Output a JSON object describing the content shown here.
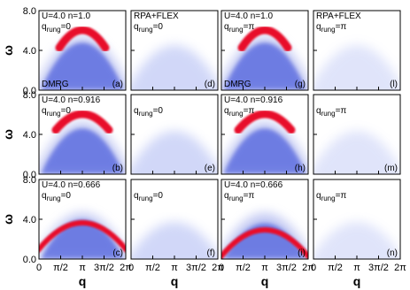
{
  "axes": {
    "ylabel": "ω",
    "xlabel": "q",
    "ylim": [
      0,
      8
    ],
    "yticks": [
      {
        "value": 0,
        "label": "0.0"
      },
      {
        "value": 4,
        "label": "4.0"
      },
      {
        "value": 8,
        "label": "8.0"
      }
    ],
    "xlim": [
      0,
      6.2832
    ],
    "xticks": [
      0,
      {
        "value": 1.5708,
        "label": "π/2"
      },
      {
        "value": 3.1416,
        "label": "π"
      },
      {
        "value": 4.7124,
        "label": "3π/2"
      },
      {
        "value": 6.2832,
        "label": "2π"
      }
    ]
  },
  "panels": [
    {
      "header": "U=4.0 n=1.0",
      "qrung": {
        "base": "q",
        "sub": "rung",
        "rest": "=0"
      },
      "method": "DMRG",
      "tag": "(a)"
    },
    {
      "header": "RPA+FLEX",
      "qrung": {
        "base": "q",
        "sub": "rung",
        "rest": "=0"
      },
      "tag": "(d)"
    },
    {
      "header": "U=4.0 n=1.0",
      "qrung": {
        "base": "q",
        "sub": "rung",
        "rest": "=π"
      },
      "method": "DMRG",
      "tag": "(g)"
    },
    {
      "header": "RPA+FLEX",
      "qrung": {
        "base": "q",
        "sub": "rung",
        "rest": "=π"
      },
      "tag": "(l)"
    },
    {
      "header": "U=4.0 n=0.916",
      "qrung": {
        "base": "q",
        "sub": "rung",
        "rest": "=0"
      },
      "tag": "(b)"
    },
    {
      "qrung": {
        "base": "q",
        "sub": "rung",
        "rest": "=0"
      },
      "tag": "(e)"
    },
    {
      "header": "U=4.0 n=0.916",
      "qrung": {
        "base": "q",
        "sub": "rung",
        "rest": "=π"
      },
      "tag": "(h)"
    },
    {
      "qrung": {
        "base": "q",
        "sub": "rung",
        "rest": "=π"
      },
      "tag": "(m)"
    },
    {
      "header": "U=4.0 n=0.666",
      "qrung": {
        "base": "q",
        "sub": "rung",
        "rest": "=0"
      },
      "tag": "(c)"
    },
    {
      "qrung": {
        "base": "q",
        "sub": "rung",
        "rest": "=0"
      },
      "tag": "(f)"
    },
    {
      "header": "U=4.0 n=0.666",
      "qrung": {
        "base": "q",
        "sub": "rung",
        "rest": "=π"
      },
      "tag": "(i)"
    },
    {
      "qrung": {
        "base": "q",
        "sub": "rung",
        "rest": "=π"
      },
      "tag": "(n)"
    }
  ]
}
